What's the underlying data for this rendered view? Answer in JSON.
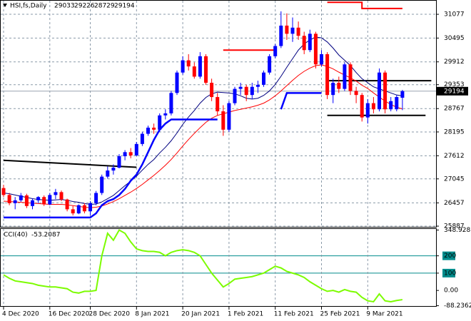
{
  "chart_data": {
    "type": "candlestick",
    "title": "HSI,fs,Daily",
    "up_color": "#0000ff",
    "down_color": "#ff0000",
    "categories": [
      "4 Dec 2020",
      null,
      null,
      null,
      null,
      null,
      null,
      null,
      "16 Dec 2020",
      null,
      null,
      null,
      null,
      null,
      null,
      "28 Dec 2020",
      null,
      null,
      null,
      null,
      null,
      null,
      null,
      "8 Jan 2021",
      null,
      null,
      null,
      null,
      null,
      null,
      null,
      "20 Jan 2021",
      null,
      null,
      null,
      null,
      null,
      null,
      null,
      "1 Feb 2021",
      null,
      null,
      null,
      null,
      null,
      null,
      null,
      "11 Feb 2021",
      null,
      null,
      null,
      null,
      null,
      null,
      null,
      "25 Feb 2021",
      null,
      null,
      null,
      null,
      null,
      null,
      null,
      "9 Mar 2021",
      null,
      null,
      null,
      null,
      null,
      null
    ],
    "candles": [
      {
        "open": 26820,
        "high": 26900,
        "low": 26600,
        "close": 26650
      },
      {
        "open": 26650,
        "high": 26700,
        "low": 26400,
        "close": 26450
      },
      {
        "open": 26450,
        "high": 26600,
        "low": 26300,
        "close": 26520
      },
      {
        "open": 26520,
        "high": 26700,
        "low": 26480,
        "close": 26640
      },
      {
        "open": 26640,
        "high": 26680,
        "low": 26330,
        "close": 26380
      },
      {
        "open": 26380,
        "high": 26560,
        "low": 26300,
        "close": 26520
      },
      {
        "open": 26520,
        "high": 26620,
        "low": 26450,
        "close": 26600
      },
      {
        "open": 26600,
        "high": 26640,
        "low": 26380,
        "close": 26420
      },
      {
        "open": 26420,
        "high": 26700,
        "low": 26400,
        "close": 26650
      },
      {
        "open": 26650,
        "high": 26800,
        "low": 26550,
        "close": 26720
      },
      {
        "open": 26720,
        "high": 26760,
        "low": 26500,
        "close": 26540
      },
      {
        "open": 26540,
        "high": 26560,
        "low": 26250,
        "close": 26300
      },
      {
        "open": 26300,
        "high": 26380,
        "low": 26150,
        "close": 26200
      },
      {
        "open": 26200,
        "high": 26420,
        "low": 26180,
        "close": 26400
      },
      {
        "open": 26400,
        "high": 26450,
        "low": 26200,
        "close": 26250
      },
      {
        "open": 26250,
        "high": 26500,
        "low": 26150,
        "close": 26450
      },
      {
        "open": 26450,
        "high": 26750,
        "low": 26400,
        "close": 26700
      },
      {
        "open": 26700,
        "high": 27150,
        "low": 26650,
        "close": 27100
      },
      {
        "open": 27100,
        "high": 27350,
        "low": 27050,
        "close": 27250
      },
      {
        "open": 27250,
        "high": 27400,
        "low": 27150,
        "close": 27320
      },
      {
        "open": 27320,
        "high": 27650,
        "low": 27300,
        "close": 27600
      },
      {
        "open": 27600,
        "high": 27750,
        "low": 27500,
        "close": 27700
      },
      {
        "open": 27700,
        "high": 27800,
        "low": 27550,
        "close": 27620
      },
      {
        "open": 27620,
        "high": 27950,
        "low": 27600,
        "close": 27900
      },
      {
        "open": 27900,
        "high": 28200,
        "low": 27850,
        "close": 28150
      },
      {
        "open": 28150,
        "high": 28350,
        "low": 28100,
        "close": 28300
      },
      {
        "open": 28300,
        "high": 28400,
        "low": 28150,
        "close": 28250
      },
      {
        "open": 28250,
        "high": 28650,
        "low": 28200,
        "close": 28600
      },
      {
        "open": 28600,
        "high": 28750,
        "low": 28500,
        "close": 28650
      },
      {
        "open": 28650,
        "high": 29200,
        "low": 28600,
        "close": 29150
      },
      {
        "open": 29150,
        "high": 29700,
        "low": 29100,
        "close": 29650
      },
      {
        "open": 29650,
        "high": 30050,
        "low": 29600,
        "close": 29950
      },
      {
        "open": 29950,
        "high": 30100,
        "low": 29700,
        "close": 29800
      },
      {
        "open": 29800,
        "high": 29900,
        "low": 29500,
        "close": 29550
      },
      {
        "open": 29550,
        "high": 30150,
        "low": 29500,
        "close": 30050
      },
      {
        "open": 30050,
        "high": 30100,
        "low": 29350,
        "close": 29400
      },
      {
        "open": 29400,
        "high": 29500,
        "low": 28950,
        "close": 29050
      },
      {
        "open": 29050,
        "high": 29150,
        "low": 28600,
        "close": 28700
      },
      {
        "open": 28700,
        "high": 28850,
        "low": 28100,
        "close": 28250
      },
      {
        "open": 28250,
        "high": 28950,
        "low": 28200,
        "close": 28900
      },
      {
        "open": 28900,
        "high": 29300,
        "low": 28850,
        "close": 29250
      },
      {
        "open": 29250,
        "high": 29400,
        "low": 29100,
        "close": 29300
      },
      {
        "open": 29300,
        "high": 29350,
        "low": 28950,
        "close": 29100
      },
      {
        "open": 29100,
        "high": 29400,
        "low": 29000,
        "close": 29300
      },
      {
        "open": 29300,
        "high": 29450,
        "low": 29150,
        "close": 29350
      },
      {
        "open": 29350,
        "high": 29700,
        "low": 29300,
        "close": 29650
      },
      {
        "open": 29650,
        "high": 30100,
        "low": 29600,
        "close": 30050
      },
      {
        "open": 30050,
        "high": 30350,
        "low": 30000,
        "close": 30300
      },
      {
        "open": 30300,
        "high": 31150,
        "low": 30250,
        "close": 30800
      },
      {
        "open": 30800,
        "high": 31100,
        "low": 30450,
        "close": 30600
      },
      {
        "open": 30600,
        "high": 31000,
        "low": 30400,
        "close": 30750
      },
      {
        "open": 30750,
        "high": 30900,
        "low": 30450,
        "close": 30550
      },
      {
        "open": 30550,
        "high": 30650,
        "low": 30100,
        "close": 30200
      },
      {
        "open": 30200,
        "high": 30700,
        "low": 30150,
        "close": 30600
      },
      {
        "open": 30600,
        "high": 30650,
        "low": 29750,
        "close": 29850
      },
      {
        "open": 29850,
        "high": 30200,
        "low": 29800,
        "close": 30100
      },
      {
        "open": 30100,
        "high": 30150,
        "low": 29000,
        "close": 29100
      },
      {
        "open": 29100,
        "high": 29500,
        "low": 28900,
        "close": 29400
      },
      {
        "open": 29400,
        "high": 29550,
        "low": 29150,
        "close": 29250
      },
      {
        "open": 29250,
        "high": 29900,
        "low": 29200,
        "close": 29850
      },
      {
        "open": 29850,
        "high": 29900,
        "low": 29100,
        "close": 29200
      },
      {
        "open": 29200,
        "high": 29300,
        "low": 28900,
        "close": 29100
      },
      {
        "open": 29100,
        "high": 29150,
        "low": 28450,
        "close": 28550
      },
      {
        "open": 28550,
        "high": 29000,
        "low": 28400,
        "close": 28900
      },
      {
        "open": 28900,
        "high": 29050,
        "low": 28650,
        "close": 28750
      },
      {
        "open": 28750,
        "high": 29750,
        "low": 28700,
        "close": 29650
      },
      {
        "open": 29650,
        "high": 29700,
        "low": 28650,
        "close": 28750
      },
      {
        "open": 28750,
        "high": 29050,
        "low": 28700,
        "close": 28950
      },
      {
        "open": 28750,
        "high": 29100,
        "low": 28700,
        "close": 29050
      },
      {
        "open": 29033,
        "high": 29226,
        "low": 28729,
        "close": 29194
      }
    ],
    "series": [
      {
        "color": "#000080",
        "width": 1,
        "values": [
          26700,
          26680,
          26650,
          26620,
          26590,
          26560,
          26540,
          26530,
          26520,
          26530,
          26540,
          26520,
          26490,
          26470,
          26440,
          26420,
          26430,
          26480,
          26560,
          26640,
          26760,
          26880,
          26990,
          27110,
          27260,
          27400,
          27520,
          27680,
          27820,
          27980,
          28170,
          28380,
          28560,
          28720,
          28900,
          29040,
          29130,
          29170,
          29160,
          29150,
          29130,
          29080,
          29020,
          29000,
          29020,
          29090,
          29200,
          29360,
          29560,
          29780,
          29990,
          30200,
          30350,
          30450,
          30520,
          30500,
          30400,
          30250,
          30080,
          29950,
          29820,
          29650,
          29500,
          29400,
          29300,
          29250,
          29200,
          29150,
          29100,
          29080
        ]
      },
      {
        "color": "#ff0000",
        "width": 1,
        "values": [
          26500,
          26490,
          26480,
          26470,
          26460,
          26450,
          26440,
          26430,
          26420,
          26420,
          26420,
          26410,
          26390,
          26370,
          26350,
          26340,
          26350,
          26380,
          26430,
          26490,
          26560,
          26640,
          26720,
          26810,
          26910,
          27020,
          27130,
          27250,
          27380,
          27520,
          27680,
          27850,
          28010,
          28160,
          28300,
          28430,
          28530,
          28600,
          28640,
          28680,
          28720,
          28750,
          28780,
          28810,
          28850,
          28900,
          28980,
          29080,
          29200,
          29330,
          29460,
          29580,
          29680,
          29760,
          29820,
          29840,
          29800,
          29740,
          29660,
          29590,
          29520,
          29440,
          29340,
          29260,
          29150,
          29050,
          28950,
          28870,
          28800,
          28760
        ]
      },
      {
        "color": "#0000ff",
        "width": 2.5,
        "values": [
          26100,
          26100,
          26100,
          26100,
          26100,
          26100,
          26100,
          26100,
          26100,
          26100,
          26100,
          26100,
          26100,
          26100,
          26100,
          26100,
          26200,
          26400,
          26500,
          26550,
          26650,
          26800,
          27000,
          27150,
          27400,
          27700,
          28000,
          28250,
          28400,
          28500,
          28500,
          28500,
          28500,
          28500,
          28500,
          28500,
          28500,
          28500,
          null,
          null,
          null,
          null,
          null,
          null,
          null,
          null,
          null,
          null,
          28750,
          29150,
          29150,
          29150,
          29150,
          29150,
          29150,
          29150,
          null,
          null,
          null,
          null,
          null,
          null,
          null,
          null,
          null,
          null,
          null,
          null,
          null,
          null
        ]
      }
    ],
    "levels": [
      {
        "color": "#000000",
        "x": [
          0,
          23
        ],
        "values": [
          27500,
          27330
        ]
      },
      {
        "color": "#ff0000",
        "x": [
          38,
          47
        ],
        "values": [
          30200,
          30200
        ]
      },
      {
        "color": "#ff0000",
        "x": [
          56,
          62,
          62,
          69
        ],
        "values": [
          31370,
          31370,
          31220,
          31220
        ]
      },
      {
        "color": "#000000",
        "x": [
          56,
          74
        ],
        "values": [
          29450,
          29450
        ]
      },
      {
        "color": "#000000",
        "x": [
          56,
          73
        ],
        "values": [
          28600,
          28600
        ]
      }
    ],
    "ylim": [
      25870,
      31410
    ],
    "yticks": [
      31077,
      30495,
      29912,
      29353,
      28767,
      28195,
      27612,
      27045,
      26457,
      25887
    ],
    "cci": {
      "name": "CCI(40)",
      "color": "#7cfc00",
      "values": [
        90,
        70,
        55,
        50,
        45,
        40,
        30,
        25,
        20,
        20,
        15,
        10,
        -10,
        -15,
        -5,
        -5,
        0,
        200,
        330,
        290,
        348.9287,
        330,
        280,
        240,
        230,
        225,
        225,
        220,
        200,
        220,
        230,
        235,
        230,
        220,
        200,
        150,
        100,
        60,
        20,
        40,
        65,
        70,
        75,
        80,
        90,
        100,
        120,
        140,
        130,
        110,
        100,
        90,
        75,
        50,
        30,
        10,
        -5,
        0,
        -10,
        5,
        -5,
        -10,
        -40,
        -60,
        -65,
        -20,
        -60,
        -65,
        -58,
        -53.2087
      ],
      "ylim": [
        -90,
        355
      ],
      "yticks": [
        348.9287,
        200,
        100,
        {
          "value": 0,
          "label": "0.00"
        },
        -88.2362
      ],
      "levels": [
        200,
        100
      ],
      "level_color": "#008b8b"
    }
  }
}
